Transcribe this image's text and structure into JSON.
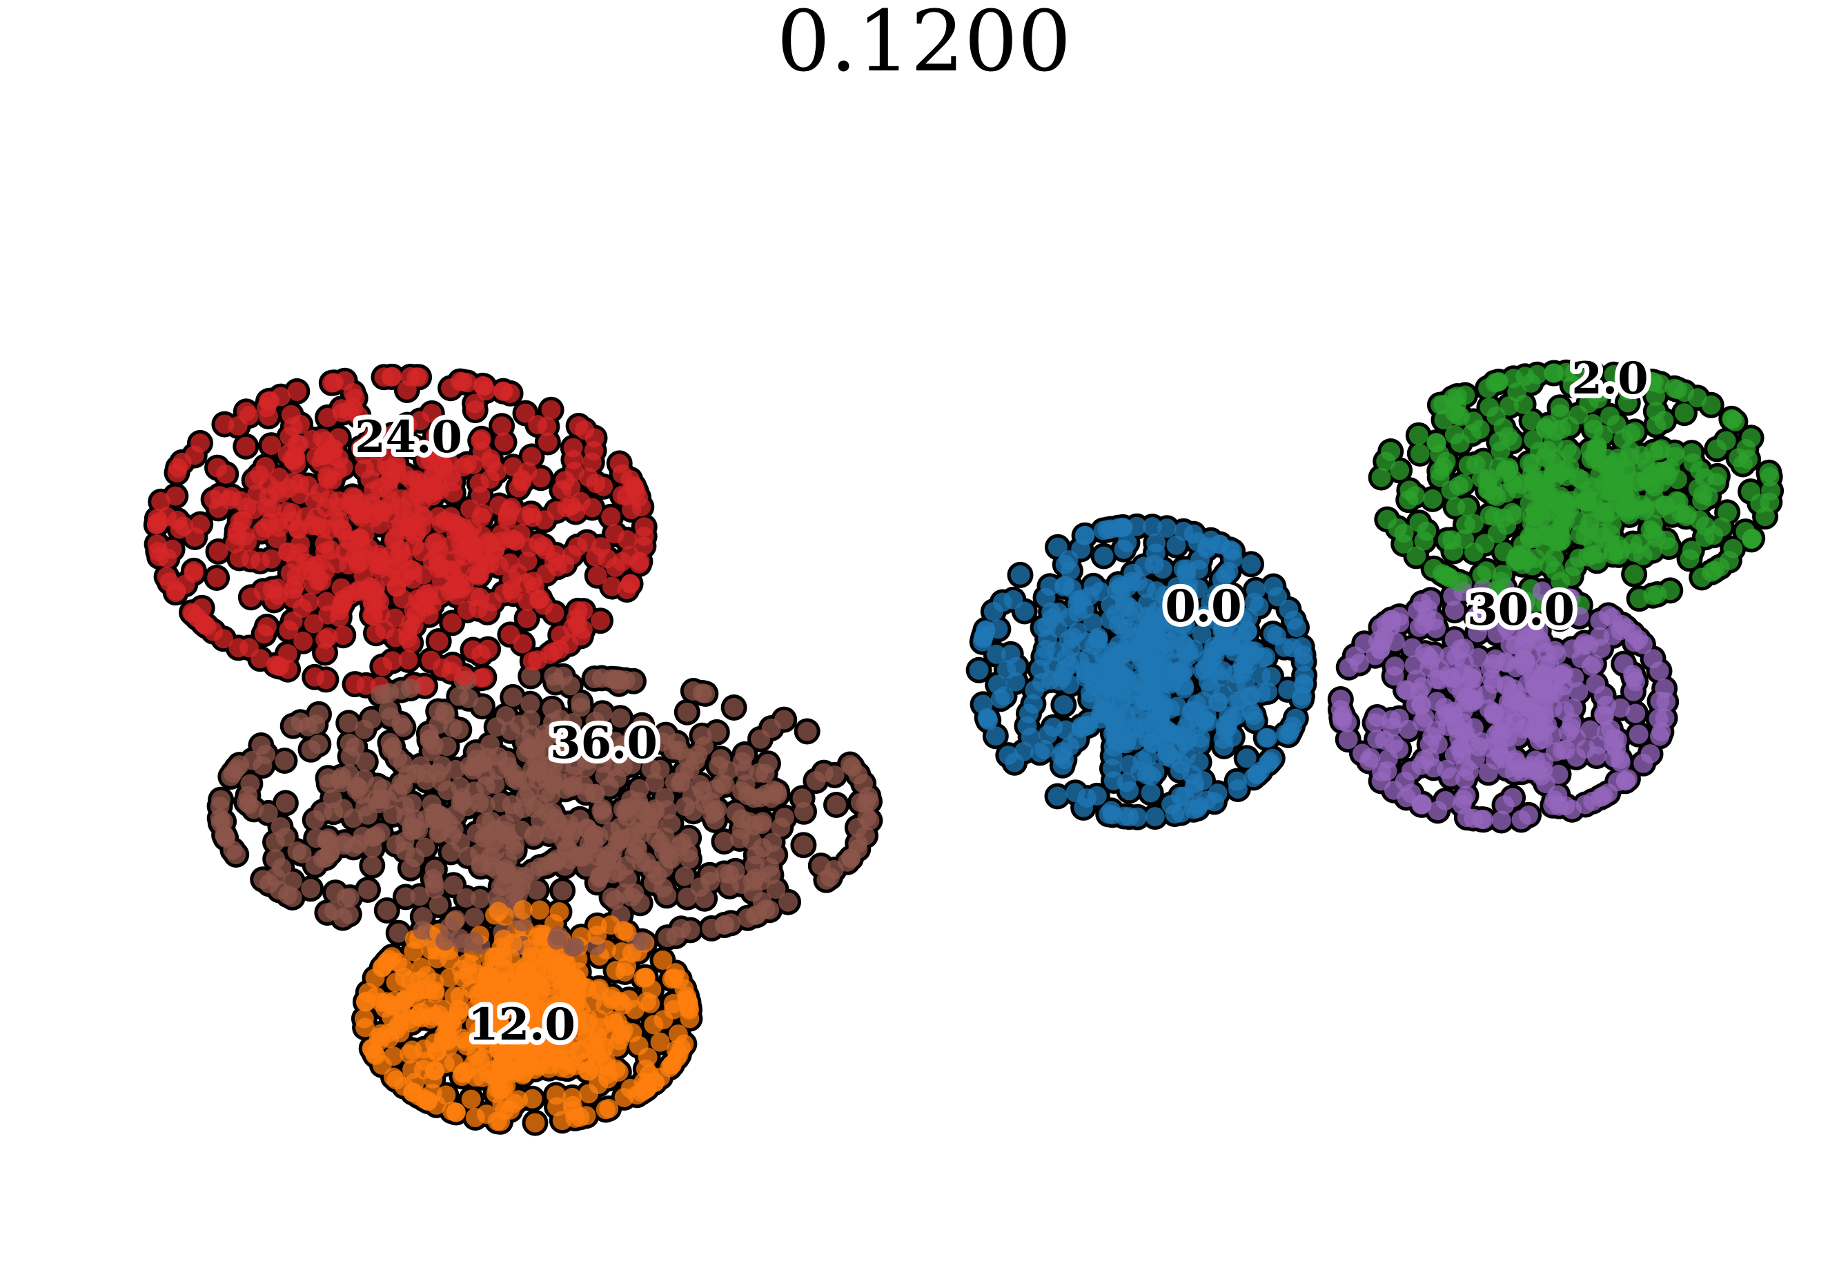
{
  "chart_data": {
    "type": "scatter",
    "title": "0.1200",
    "xlabel": "",
    "ylabel": "",
    "axes_visible": false,
    "grid": false,
    "legend": "none (on-plot cluster labels)",
    "point_style": {
      "edge_color": "#000000",
      "alpha": 0.75
    },
    "series": [
      {
        "name": "0.0",
        "color": "#1f77b4",
        "center": [
          0.62,
          0.47
        ],
        "spread": [
          0.1,
          0.15
        ],
        "count": 520
      },
      {
        "name": "2.0",
        "color": "#2ca02c",
        "center": [
          0.86,
          0.3
        ],
        "spread": [
          0.12,
          0.12
        ],
        "count": 420
      },
      {
        "name": "12.0",
        "color": "#ff7f0e",
        "center": [
          0.28,
          0.79
        ],
        "spread": [
          0.1,
          0.11
        ],
        "count": 520
      },
      {
        "name": "24.0",
        "color": "#d62728",
        "center": [
          0.21,
          0.34
        ],
        "spread": [
          0.15,
          0.16
        ],
        "count": 620
      },
      {
        "name": "30.0",
        "color": "#9467bd",
        "center": [
          0.82,
          0.5
        ],
        "spread": [
          0.1,
          0.12
        ],
        "count": 380
      },
      {
        "name": "36.0",
        "color": "#8c564b",
        "center": [
          0.29,
          0.6
        ],
        "spread": [
          0.2,
          0.14
        ],
        "count": 640
      }
    ],
    "labels": [
      {
        "text": "24.0"
      },
      {
        "text": "36.0"
      },
      {
        "text": "12.0"
      },
      {
        "text": "0.0"
      },
      {
        "text": "30.0"
      },
      {
        "text": "2.0"
      }
    ]
  }
}
